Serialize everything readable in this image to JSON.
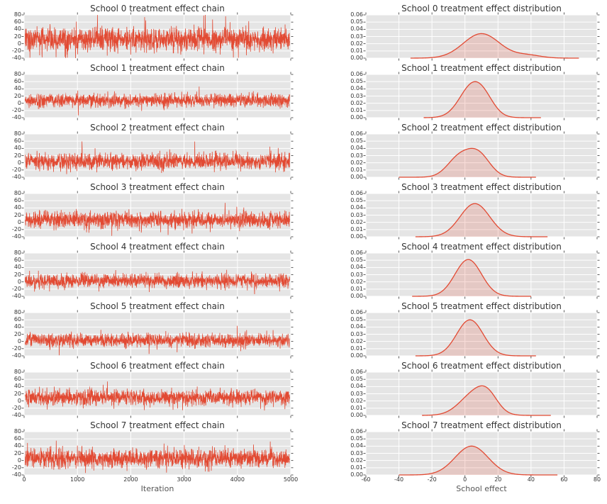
{
  "chart_data": {
    "type": "line",
    "layout": {
      "rows": 8,
      "cols": 2,
      "grid": true,
      "legend": "none",
      "theme": "darkgrid"
    },
    "style": {
      "axes_bg": "#E5E5E5",
      "grid_color": "#FFFFFF",
      "line_color": "#E24A33",
      "fill_color": "rgba(226,74,51,0.18)",
      "tick_text_color": "#333333",
      "title_color": "#333333",
      "label_color": "#555555"
    },
    "chain_axis": {
      "xlabel": "Iteration",
      "xlim": [
        0,
        5000
      ],
      "xticks": [
        0,
        1000,
        2000,
        3000,
        4000,
        5000
      ],
      "ylim": [
        -40,
        80
      ],
      "yticks": [
        80,
        60,
        40,
        20,
        0,
        -20,
        -40
      ]
    },
    "dist_axis": {
      "xlabel": "School effect",
      "xlim": [
        -60,
        80
      ],
      "xticks": [
        -60,
        -40,
        -20,
        0,
        20,
        40,
        60,
        80
      ],
      "ylim": [
        0,
        0.06
      ],
      "ytick_labels": [
        "0.06",
        "0.05",
        "0.04",
        "0.03",
        "0.02",
        "0.01",
        "0.00"
      ]
    },
    "rows": [
      {
        "school": 0,
        "chain_title": "School 0 treatment effect chain",
        "dist_title": "School 0 treatment effect distribution",
        "chain": {
          "mean": 12,
          "sd": 16,
          "n_iterations": 5000
        },
        "kde": {
          "peak_density": 0.034,
          "peak_x": 10,
          "support": [
            -33,
            69
          ],
          "components": [
            {
              "mu": 10,
              "sigma": 11,
              "w": 1
            },
            {
              "mu": 38,
              "sigma": 8,
              "w": 0.12
            }
          ]
        }
      },
      {
        "school": 1,
        "chain_title": "School 1 treatment effect chain",
        "dist_title": "School 1 treatment effect distribution",
        "chain": {
          "mean": 8,
          "sd": 9,
          "n_iterations": 5000
        },
        "kde": {
          "peak_density": 0.05,
          "peak_x": 6,
          "support": [
            -25,
            46
          ],
          "components": [
            {
              "mu": 5,
              "sigma": 8,
              "w": 1
            },
            {
              "mu": 13,
              "sigma": 6,
              "w": 0.18
            }
          ]
        }
      },
      {
        "school": 2,
        "chain_title": "School 2 treatment effect chain",
        "dist_title": "School 2 treatment effect distribution",
        "chain": {
          "mean": 4,
          "sd": 11,
          "n_iterations": 5000
        },
        "kde": {
          "peak_density": 0.04,
          "peak_x": 7,
          "support": [
            -40,
            43
          ],
          "components": [
            {
              "mu": -4,
              "sigma": 7,
              "w": 0.8
            },
            {
              "mu": 8,
              "sigma": 7,
              "w": 1
            }
          ]
        }
      },
      {
        "school": 3,
        "chain_title": "School 3 treatment effect chain",
        "dist_title": "School 3 treatment effect distribution",
        "chain": {
          "mean": 7,
          "sd": 11,
          "n_iterations": 5000
        },
        "kde": {
          "peak_density": 0.046,
          "peak_x": 6,
          "support": [
            -30,
            50
          ],
          "components": [
            {
              "mu": 6,
              "sigma": 9,
              "w": 1
            }
          ]
        }
      },
      {
        "school": 4,
        "chain_title": "School 4 treatment effect chain",
        "dist_title": "School 4 treatment effect distribution",
        "chain": {
          "mean": 3,
          "sd": 9,
          "n_iterations": 5000
        },
        "kde": {
          "peak_density": 0.051,
          "peak_x": 2,
          "support": [
            -32,
            40
          ],
          "components": [
            {
              "mu": 2,
              "sigma": 8,
              "w": 1
            }
          ]
        }
      },
      {
        "school": 5,
        "chain_title": "School 5 treatment effect chain",
        "dist_title": "School 5 treatment effect distribution",
        "chain": {
          "mean": 3,
          "sd": 9,
          "n_iterations": 5000
        },
        "kde": {
          "peak_density": 0.05,
          "peak_x": 3,
          "support": [
            -30,
            43
          ],
          "components": [
            {
              "mu": 3,
              "sigma": 8,
              "w": 1
            }
          ]
        }
      },
      {
        "school": 6,
        "chain_title": "School 6 treatment effect chain",
        "dist_title": "School 6 treatment effect distribution",
        "chain": {
          "mean": 10,
          "sd": 11,
          "n_iterations": 5000
        },
        "kde": {
          "peak_density": 0.041,
          "peak_x": 8,
          "support": [
            -26,
            52
          ],
          "components": [
            {
              "mu": 6,
              "sigma": 9,
              "w": 1
            },
            {
              "mu": 14,
              "sigma": 6,
              "w": 0.55
            }
          ]
        }
      },
      {
        "school": 7,
        "chain_title": "School 7 treatment effect chain",
        "dist_title": "School 7 treatment effect distribution",
        "chain": {
          "mean": 6,
          "sd": 13,
          "n_iterations": 5000
        },
        "kde": {
          "peak_density": 0.04,
          "peak_x": 5,
          "support": [
            -40,
            56
          ],
          "components": [
            {
              "mu": 4,
              "sigma": 10,
              "w": 1
            }
          ]
        }
      }
    ]
  }
}
